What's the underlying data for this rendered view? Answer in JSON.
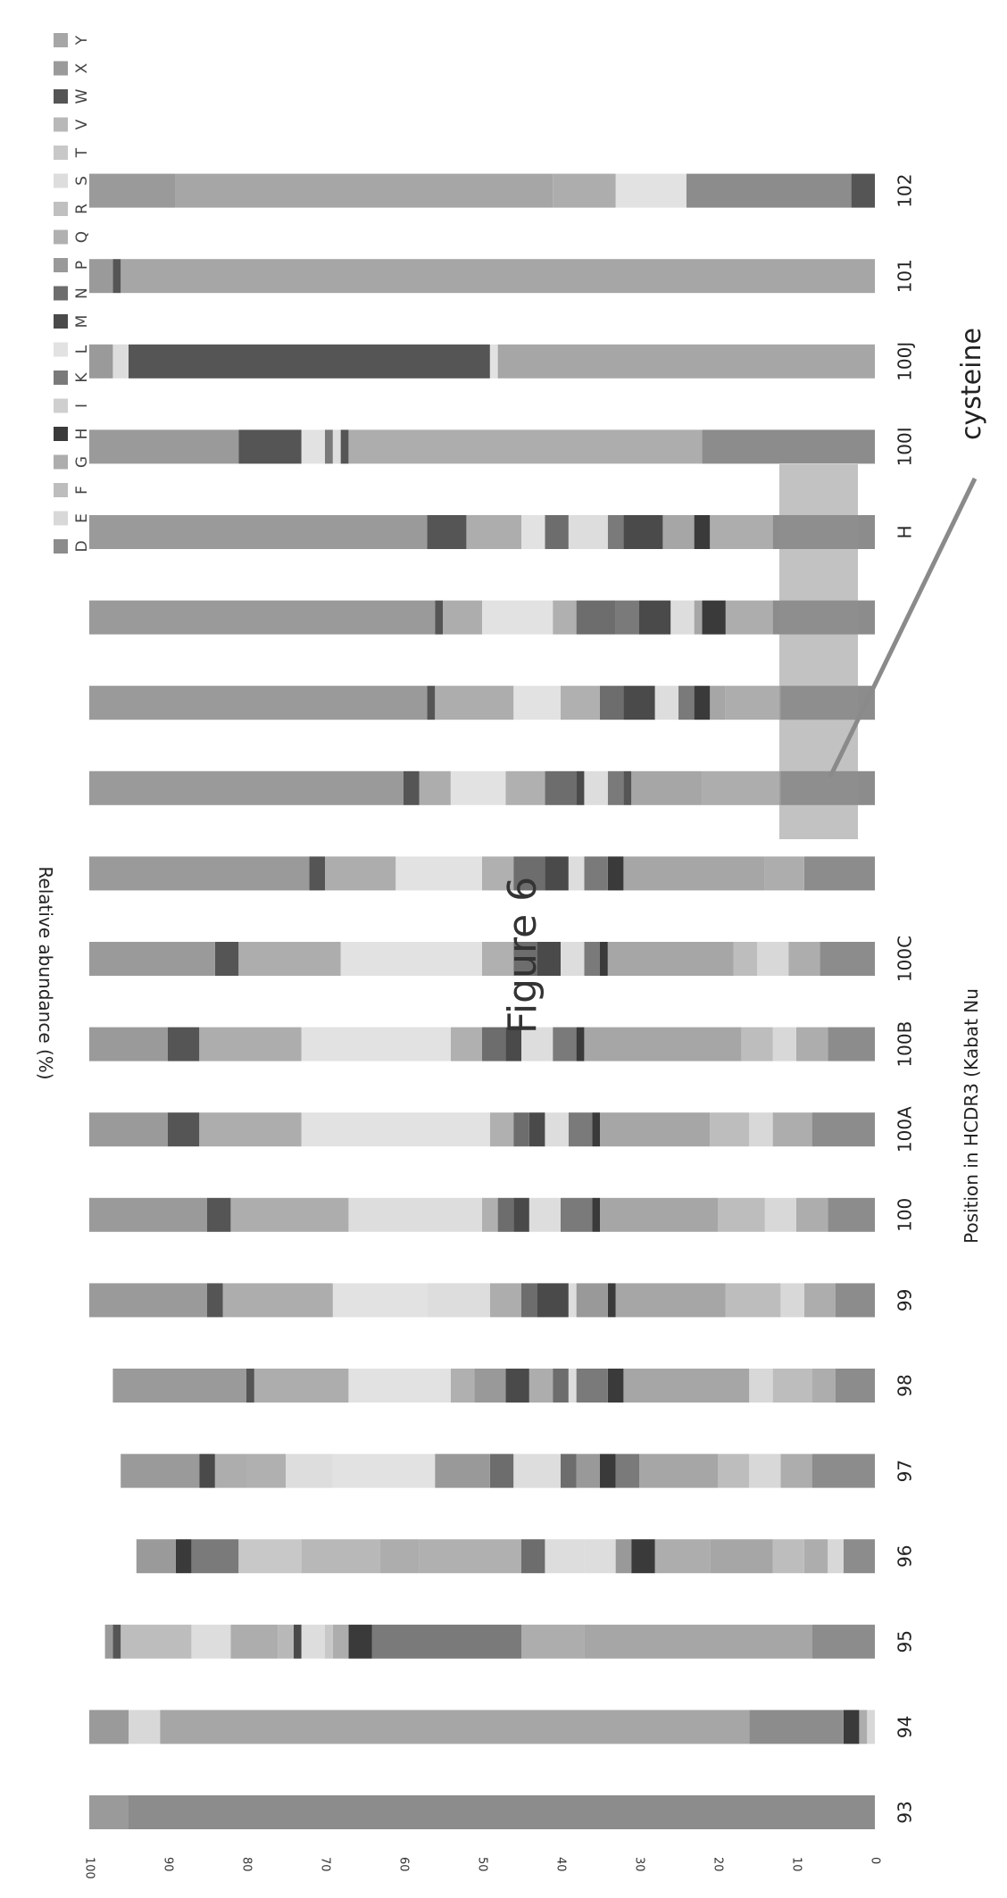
{
  "chart_data": {
    "type": "bar",
    "orientation": "horizontal-stacked",
    "title": "Figure 6",
    "xlabel": "Position in HCDR3 (Kabat Nu",
    "ylabel": "Relative abundance (%)",
    "ylim": [
      0,
      100
    ],
    "yticks": [
      "0",
      "10",
      "20",
      "30",
      "40",
      "50",
      "60",
      "70",
      "80",
      "90",
      "100"
    ],
    "annotation": "cysteine",
    "categories": [
      "93",
      "94",
      "95",
      "96",
      "97",
      "98",
      "99",
      "100",
      "100A",
      "100B",
      "100C",
      "",
      "",
      "",
      "",
      "H",
      "100I",
      "100J",
      "101",
      "102"
    ],
    "legend": [
      {
        "name": "Y",
        "color": "#a6a6a6"
      },
      {
        "name": "X",
        "color": "#9a9a9a"
      },
      {
        "name": "W",
        "color": "#555555"
      },
      {
        "name": "V",
        "color": "#b8b8b8"
      },
      {
        "name": "T",
        "color": "#c8c8c8"
      },
      {
        "name": "S",
        "color": "#dddddd"
      },
      {
        "name": "R",
        "color": "#c0c0c0"
      },
      {
        "name": "Q",
        "color": "#b0b0b0"
      },
      {
        "name": "P",
        "color": "#999999"
      },
      {
        "name": "N",
        "color": "#6d6d6d"
      },
      {
        "name": "M",
        "color": "#4a4a4a"
      },
      {
        "name": "L",
        "color": "#e2e2e2"
      },
      {
        "name": "K",
        "color": "#7a7a7a"
      },
      {
        "name": "I",
        "color": "#cfcfcf"
      },
      {
        "name": "H",
        "color": "#3a3a3a"
      },
      {
        "name": "G",
        "color": "#adadad"
      },
      {
        "name": "F",
        "color": "#bdbdbd"
      },
      {
        "name": "E",
        "color": "#d8d8d8"
      },
      {
        "name": "D",
        "color": "#8c8c8c"
      }
    ],
    "segments": [
      [
        {
          "name": "D",
          "value": 95
        },
        {
          "name": "X",
          "value": 5
        }
      ],
      [
        {
          "name": "E",
          "value": 1
        },
        {
          "name": "G",
          "value": 1
        },
        {
          "name": "H",
          "value": 2
        },
        {
          "name": "D",
          "value": 12
        },
        {
          "name": "Y",
          "value": 75
        },
        {
          "name": "E",
          "value": 4
        },
        {
          "name": "X",
          "value": 5
        }
      ],
      [
        {
          "name": "D",
          "value": 8
        },
        {
          "name": "Y",
          "value": 29
        },
        {
          "name": "G",
          "value": 8
        },
        {
          "name": "K",
          "value": 19
        },
        {
          "name": "H",
          "value": 3
        },
        {
          "name": "G",
          "value": 2
        },
        {
          "name": "T",
          "value": 1
        },
        {
          "name": "S",
          "value": 3
        },
        {
          "name": "M",
          "value": 1
        },
        {
          "name": "V",
          "value": 2
        },
        {
          "name": "G",
          "value": 6
        },
        {
          "name": "S",
          "value": 5
        },
        {
          "name": "F",
          "value": 9
        },
        {
          "name": "W",
          "value": 1
        },
        {
          "name": "X",
          "value": 1
        }
      ],
      [
        {
          "name": "D",
          "value": 4
        },
        {
          "name": "E",
          "value": 2
        },
        {
          "name": "G",
          "value": 3
        },
        {
          "name": "F",
          "value": 4
        },
        {
          "name": "Y",
          "value": 8
        },
        {
          "name": "G",
          "value": 7
        },
        {
          "name": "H",
          "value": 3
        },
        {
          "name": "P",
          "value": 2
        },
        {
          "name": "S",
          "value": 4
        },
        {
          "name": "S",
          "value": 5
        },
        {
          "name": "N",
          "value": 3
        },
        {
          "name": "Q",
          "value": 13
        },
        {
          "name": "G",
          "value": 5
        },
        {
          "name": "V",
          "value": 10
        },
        {
          "name": "T",
          "value": 8
        },
        {
          "name": "K",
          "value": 6
        },
        {
          "name": "H",
          "value": 2
        },
        {
          "name": "X",
          "value": 5
        }
      ],
      [
        {
          "name": "D",
          "value": 8
        },
        {
          "name": "G",
          "value": 4
        },
        {
          "name": "E",
          "value": 4
        },
        {
          "name": "F",
          "value": 4
        },
        {
          "name": "Y",
          "value": 10
        },
        {
          "name": "K",
          "value": 3
        },
        {
          "name": "H",
          "value": 2
        },
        {
          "name": "P",
          "value": 3
        },
        {
          "name": "N",
          "value": 2
        },
        {
          "name": "S",
          "value": 6
        },
        {
          "name": "N",
          "value": 3
        },
        {
          "name": "P",
          "value": 7
        },
        {
          "name": "L",
          "value": 13
        },
        {
          "name": "S",
          "value": 6
        },
        {
          "name": "Q",
          "value": 5
        },
        {
          "name": "G",
          "value": 4
        },
        {
          "name": "M",
          "value": 2
        },
        {
          "name": "X",
          "value": 10
        }
      ],
      [
        {
          "name": "D",
          "value": 5
        },
        {
          "name": "G",
          "value": 3
        },
        {
          "name": "F",
          "value": 5
        },
        {
          "name": "E",
          "value": 3
        },
        {
          "name": "Y",
          "value": 16
        },
        {
          "name": "H",
          "value": 2
        },
        {
          "name": "K",
          "value": 4
        },
        {
          "name": "S",
          "value": 1
        },
        {
          "name": "N",
          "value": 2
        },
        {
          "name": "G",
          "value": 3
        },
        {
          "name": "M",
          "value": 3
        },
        {
          "name": "P",
          "value": 4
        },
        {
          "name": "Q",
          "value": 3
        },
        {
          "name": "L",
          "value": 13
        },
        {
          "name": "G",
          "value": 12
        },
        {
          "name": "W",
          "value": 1
        },
        {
          "name": "X",
          "value": 17
        }
      ],
      [
        {
          "name": "D",
          "value": 5
        },
        {
          "name": "G",
          "value": 4
        },
        {
          "name": "E",
          "value": 3
        },
        {
          "name": "F",
          "value": 7
        },
        {
          "name": "Y",
          "value": 14
        },
        {
          "name": "H",
          "value": 1
        },
        {
          "name": "P",
          "value": 4
        },
        {
          "name": "S",
          "value": 1
        },
        {
          "name": "M",
          "value": 4
        },
        {
          "name": "N",
          "value": 2
        },
        {
          "name": "G",
          "value": 4
        },
        {
          "name": "S",
          "value": 8
        },
        {
          "name": "L",
          "value": 12
        },
        {
          "name": "G",
          "value": 14
        },
        {
          "name": "W",
          "value": 2
        },
        {
          "name": "X",
          "value": 15
        }
      ],
      [
        {
          "name": "D",
          "value": 6
        },
        {
          "name": "G",
          "value": 4
        },
        {
          "name": "E",
          "value": 4
        },
        {
          "name": "F",
          "value": 6
        },
        {
          "name": "Y",
          "value": 15
        },
        {
          "name": "H",
          "value": 1
        },
        {
          "name": "K",
          "value": 4
        },
        {
          "name": "S",
          "value": 4
        },
        {
          "name": "M",
          "value": 2
        },
        {
          "name": "N",
          "value": 2
        },
        {
          "name": "Q",
          "value": 2
        },
        {
          "name": "S",
          "value": 17
        },
        {
          "name": "G",
          "value": 15
        },
        {
          "name": "W",
          "value": 3
        },
        {
          "name": "X",
          "value": 15
        }
      ],
      [
        {
          "name": "D",
          "value": 8
        },
        {
          "name": "G",
          "value": 5
        },
        {
          "name": "E",
          "value": 3
        },
        {
          "name": "F",
          "value": 5
        },
        {
          "name": "Y",
          "value": 14
        },
        {
          "name": "H",
          "value": 1
        },
        {
          "name": "K",
          "value": 3
        },
        {
          "name": "S",
          "value": 3
        },
        {
          "name": "M",
          "value": 2
        },
        {
          "name": "N",
          "value": 2
        },
        {
          "name": "Q",
          "value": 3
        },
        {
          "name": "L",
          "value": 24
        },
        {
          "name": "G",
          "value": 13
        },
        {
          "name": "W",
          "value": 4
        },
        {
          "name": "X",
          "value": 10
        }
      ],
      [
        {
          "name": "D",
          "value": 6
        },
        {
          "name": "G",
          "value": 4
        },
        {
          "name": "E",
          "value": 3
        },
        {
          "name": "F",
          "value": 4
        },
        {
          "name": "Y",
          "value": 20
        },
        {
          "name": "H",
          "value": 1
        },
        {
          "name": "K",
          "value": 3
        },
        {
          "name": "S",
          "value": 4
        },
        {
          "name": "M",
          "value": 2
        },
        {
          "name": "N",
          "value": 3
        },
        {
          "name": "Q",
          "value": 4
        },
        {
          "name": "L",
          "value": 19
        },
        {
          "name": "G",
          "value": 13
        },
        {
          "name": "W",
          "value": 4
        },
        {
          "name": "X",
          "value": 10
        }
      ],
      [
        {
          "name": "D",
          "value": 7
        },
        {
          "name": "G",
          "value": 4
        },
        {
          "name": "E",
          "value": 4
        },
        {
          "name": "F",
          "value": 3
        },
        {
          "name": "Y",
          "value": 16
        },
        {
          "name": "H",
          "value": 1
        },
        {
          "name": "K",
          "value": 2
        },
        {
          "name": "S",
          "value": 3
        },
        {
          "name": "M",
          "value": 3
        },
        {
          "name": "N",
          "value": 3
        },
        {
          "name": "Q",
          "value": 4
        },
        {
          "name": "L",
          "value": 18
        },
        {
          "name": "G",
          "value": 13
        },
        {
          "name": "W",
          "value": 3
        },
        {
          "name": "X",
          "value": 16
        }
      ],
      [
        {
          "name": "D",
          "value": 9
        },
        {
          "name": "G",
          "value": 5
        },
        {
          "name": "Y",
          "value": 18
        },
        {
          "name": "H",
          "value": 2
        },
        {
          "name": "K",
          "value": 3
        },
        {
          "name": "S",
          "value": 2
        },
        {
          "name": "M",
          "value": 3
        },
        {
          "name": "N",
          "value": 4
        },
        {
          "name": "Q",
          "value": 4
        },
        {
          "name": "L",
          "value": 11
        },
        {
          "name": "G",
          "value": 9
        },
        {
          "name": "W",
          "value": 2
        },
        {
          "name": "X",
          "value": 28
        }
      ],
      [
        {
          "name": "D",
          "value": 12
        },
        {
          "name": "G",
          "value": 10
        },
        {
          "name": "Y",
          "value": 9
        },
        {
          "name": "W",
          "value": 1
        },
        {
          "name": "K",
          "value": 2
        },
        {
          "name": "S",
          "value": 3
        },
        {
          "name": "M",
          "value": 1
        },
        {
          "name": "N",
          "value": 4
        },
        {
          "name": "Q",
          "value": 5
        },
        {
          "name": "L",
          "value": 7
        },
        {
          "name": "G",
          "value": 4
        },
        {
          "name": "W",
          "value": 2
        },
        {
          "name": "X",
          "value": 40
        }
      ],
      [
        {
          "name": "D",
          "value": 12
        },
        {
          "name": "G",
          "value": 7
        },
        {
          "name": "Y",
          "value": 2
        },
        {
          "name": "H",
          "value": 2
        },
        {
          "name": "K",
          "value": 2
        },
        {
          "name": "S",
          "value": 3
        },
        {
          "name": "M",
          "value": 4
        },
        {
          "name": "N",
          "value": 3
        },
        {
          "name": "Q",
          "value": 5
        },
        {
          "name": "L",
          "value": 6
        },
        {
          "name": "G",
          "value": 10
        },
        {
          "name": "W",
          "value": 1
        },
        {
          "name": "X",
          "value": 43
        }
      ],
      [
        {
          "name": "D",
          "value": 13
        },
        {
          "name": "G",
          "value": 6
        },
        {
          "name": "H",
          "value": 3
        },
        {
          "name": "Y",
          "value": 1
        },
        {
          "name": "S",
          "value": 3
        },
        {
          "name": "M",
          "value": 4
        },
        {
          "name": "K",
          "value": 3
        },
        {
          "name": "N",
          "value": 5
        },
        {
          "name": "Q",
          "value": 3
        },
        {
          "name": "L",
          "value": 9
        },
        {
          "name": "G",
          "value": 5
        },
        {
          "name": "W",
          "value": 1
        },
        {
          "name": "X",
          "value": 44
        }
      ],
      [
        {
          "name": "D",
          "value": 13
        },
        {
          "name": "G",
          "value": 8
        },
        {
          "name": "H",
          "value": 2
        },
        {
          "name": "Y",
          "value": 4
        },
        {
          "name": "M",
          "value": 5
        },
        {
          "name": "K",
          "value": 2
        },
        {
          "name": "S",
          "value": 5
        },
        {
          "name": "N",
          "value": 3
        },
        {
          "name": "L",
          "value": 3
        },
        {
          "name": "G",
          "value": 7
        },
        {
          "name": "W",
          "value": 5
        },
        {
          "name": "X",
          "value": 43
        }
      ],
      [
        {
          "name": "D",
          "value": 22
        },
        {
          "name": "G",
          "value": 45
        },
        {
          "name": "W",
          "value": 1
        },
        {
          "name": "S",
          "value": 1
        },
        {
          "name": "K",
          "value": 1
        },
        {
          "name": "L",
          "value": 3
        },
        {
          "name": "W",
          "value": 8
        },
        {
          "name": "X",
          "value": 19
        }
      ],
      [
        {
          "name": "Y",
          "value": 48
        },
        {
          "name": "L",
          "value": 1
        },
        {
          "name": "W",
          "value": 46
        },
        {
          "name": "S",
          "value": 2
        },
        {
          "name": "X",
          "value": 3
        }
      ],
      [
        {
          "name": "Y",
          "value": 96
        },
        {
          "name": "W",
          "value": 1
        },
        {
          "name": "X",
          "value": 3
        }
      ],
      [
        {
          "name": "W",
          "value": 3
        },
        {
          "name": "D",
          "value": 21
        },
        {
          "name": "L",
          "value": 9
        },
        {
          "name": "G",
          "value": 8
        },
        {
          "name": "Y",
          "value": 48
        },
        {
          "name": "X",
          "value": 11
        }
      ]
    ]
  }
}
